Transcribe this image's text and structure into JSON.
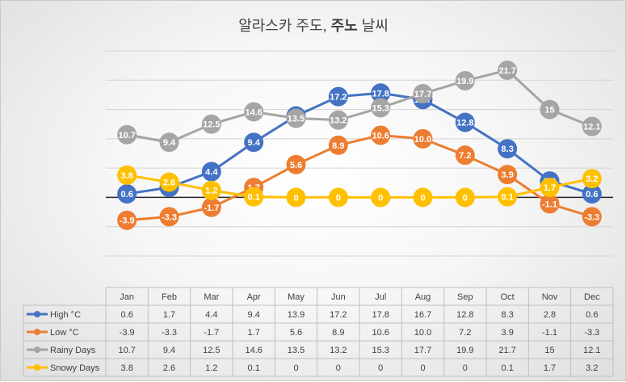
{
  "chart_data": {
    "type": "line",
    "title_parts": [
      "알라스카 주도, ",
      "주노",
      " 날씨"
    ],
    "categories": [
      "Jan",
      "Feb",
      "Mar",
      "Apr",
      "May",
      "Jun",
      "Jul",
      "Aug",
      "Sep",
      "Oct",
      "Nov",
      "Dec"
    ],
    "series": [
      {
        "name": "High °C",
        "color": "#4472C4",
        "values": [
          0.6,
          1.7,
          4.4,
          9.4,
          13.9,
          17.2,
          17.8,
          16.7,
          12.8,
          8.3,
          2.8,
          0.6
        ],
        "labels": [
          "0.6",
          "1.7",
          "4.4",
          "9.4",
          "13.9",
          "17.2",
          "17.8",
          "16.7",
          "12.8",
          "8.3",
          "2.8",
          "0.6"
        ]
      },
      {
        "name": "Low °C",
        "color": "#ED7D31",
        "values": [
          -3.9,
          -3.3,
          -1.7,
          1.7,
          5.6,
          8.9,
          10.6,
          10.0,
          7.2,
          3.9,
          -1.1,
          -3.3
        ],
        "labels": [
          "-3.9",
          "-3.3",
          "-1.7",
          "1.7",
          "5.6",
          "8.9",
          "10.6",
          "10.0",
          "7.2",
          "3.9",
          "-1.1",
          "-3.3"
        ]
      },
      {
        "name": "Rainy Days",
        "color": "#A5A5A5",
        "values": [
          10.7,
          9.4,
          12.5,
          14.6,
          13.5,
          13.2,
          15.3,
          17.7,
          19.9,
          21.7,
          15,
          12.1
        ],
        "labels": [
          "10.7",
          "9.4",
          "12.5",
          "14.6",
          "13.5",
          "13.2",
          "15.3",
          "17.7",
          "19.9",
          "21.7",
          "15",
          "12.1"
        ]
      },
      {
        "name": "Snowy Days",
        "color": "#FFC000",
        "values": [
          3.8,
          2.6,
          1.2,
          0.1,
          0,
          0,
          0,
          0,
          0,
          0.1,
          1.7,
          3.2
        ],
        "labels": [
          "3.8",
          "2.6",
          "1.2",
          "0.1",
          "0",
          "0",
          "0",
          "0",
          "0",
          "0.1",
          "1.7",
          "3.2"
        ]
      }
    ],
    "ylim": [
      -10,
      25
    ],
    "grid": true,
    "legend": "data-table-left",
    "zero_line": true
  }
}
